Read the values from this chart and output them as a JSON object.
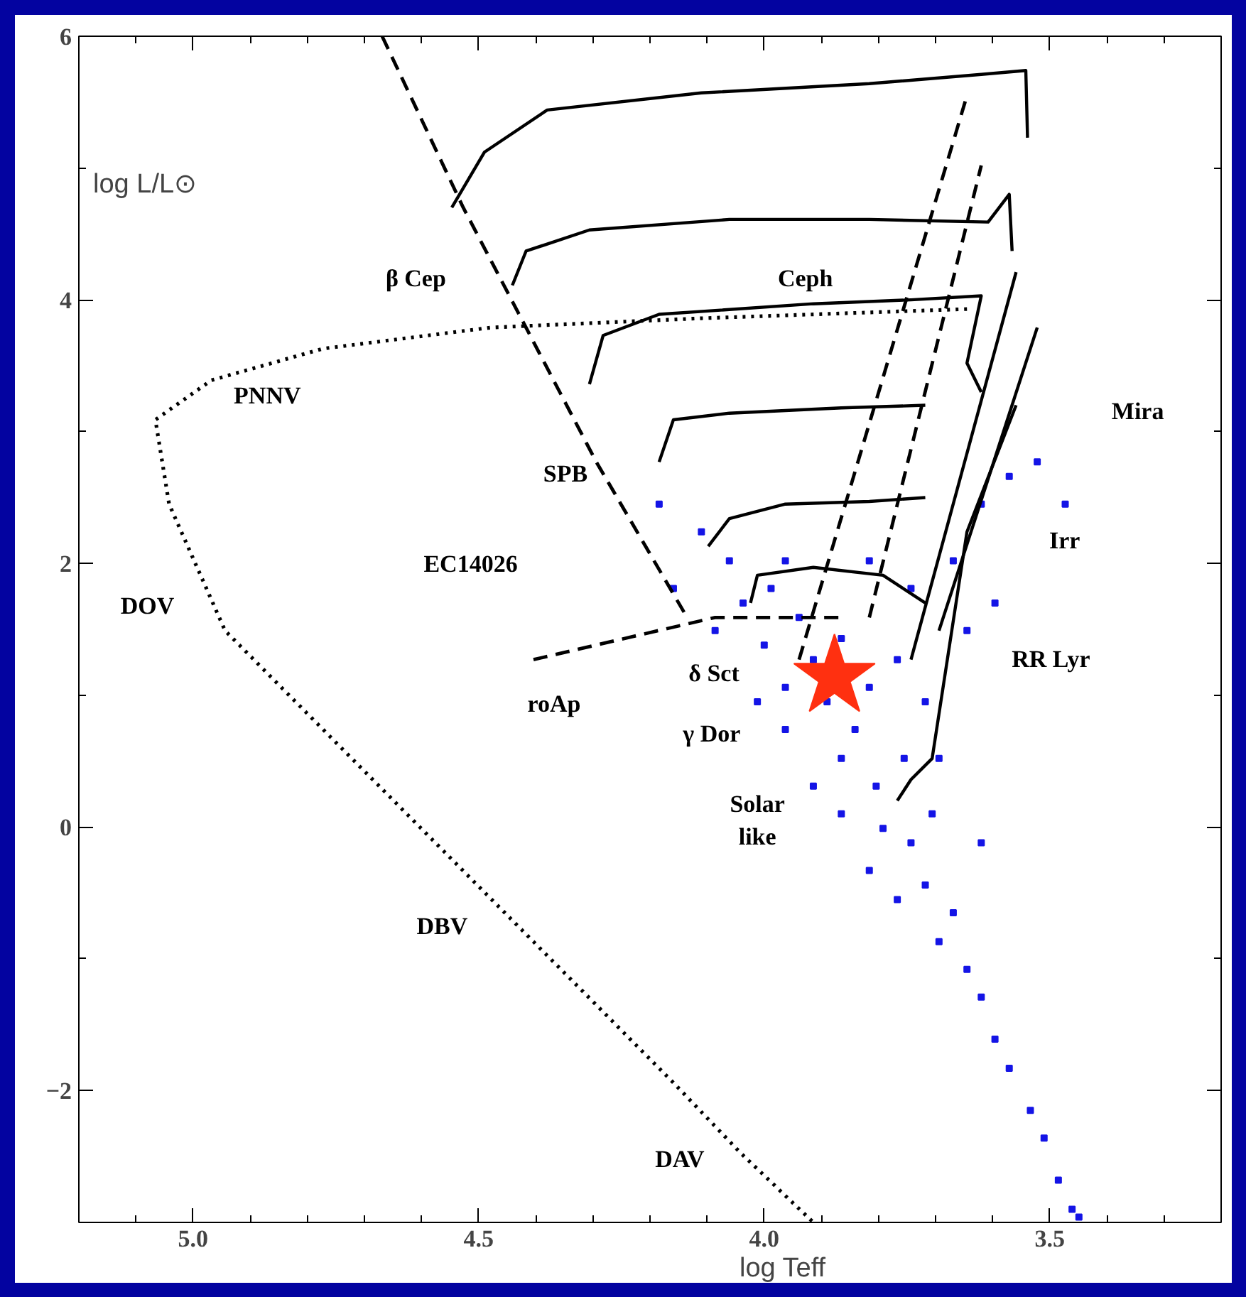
{
  "chart_data": {
    "type": "line",
    "xlabel": "log Teff",
    "ylabel": "log L/L⊙",
    "xlim": [
      5.2,
      3.2
    ],
    "ylim": [
      -3.0,
      6.0
    ],
    "xticks": [
      {
        "value": 5.1,
        "label": null
      },
      {
        "value": 5.0,
        "label": "5.0"
      },
      {
        "value": 4.9,
        "label": null
      },
      {
        "value": 4.8,
        "label": null
      },
      {
        "value": 4.7,
        "label": null
      },
      {
        "value": 4.6,
        "label": null
      },
      {
        "value": 4.5,
        "label": "4.5"
      },
      {
        "value": 4.4,
        "label": null
      },
      {
        "value": 4.3,
        "label": null
      },
      {
        "value": 4.2,
        "label": null
      },
      {
        "value": 4.1,
        "label": null
      },
      {
        "value": 4.0,
        "label": "4.0"
      },
      {
        "value": 3.9,
        "label": null
      },
      {
        "value": 3.8,
        "label": null
      },
      {
        "value": 3.7,
        "label": null
      },
      {
        "value": 3.6,
        "label": null
      },
      {
        "value": 3.5,
        "label": "3.5"
      },
      {
        "value": 3.4,
        "label": null
      },
      {
        "value": 3.3,
        "label": null
      }
    ],
    "yticks": [
      -2,
      {
        "value": -1,
        "label": null
      },
      0,
      {
        "value": 1,
        "label": null
      },
      2,
      {
        "value": 3,
        "label": null
      },
      4,
      {
        "value": 5,
        "label": null
      },
      6
    ],
    "grid": false,
    "series": [
      {
        "type": "scatter",
        "marker": "square",
        "color": "#1414e6",
        "x": [
          4.037,
          3.988,
          3.939,
          4.0,
          3.914,
          3.865,
          3.963,
          3.89,
          3.841,
          3.816,
          3.767,
          3.865,
          3.804,
          3.755,
          3.792,
          3.743,
          3.706,
          3.718,
          3.669,
          3.694,
          3.645,
          3.62,
          3.596,
          3.571,
          3.534,
          3.51,
          3.485,
          3.461,
          3.449,
          4.061,
          4.11,
          4.184,
          3.743,
          3.669,
          3.62,
          3.571,
          3.645,
          3.596,
          3.718,
          3.694,
          3.62,
          3.963,
          3.914,
          3.816,
          3.865,
          3.767,
          3.963,
          3.816,
          3.522,
          3.473,
          4.159,
          4.086,
          4.012
        ],
        "values": [
          1.7,
          1.81,
          1.59,
          1.38,
          1.27,
          1.43,
          1.06,
          0.95,
          0.74,
          1.06,
          1.27,
          0.52,
          0.31,
          0.52,
          -0.01,
          -0.12,
          0.1,
          -0.44,
          -0.65,
          -0.87,
          -1.08,
          -1.29,
          -1.61,
          -1.83,
          -2.15,
          -2.36,
          -2.68,
          -2.9,
          -2.96,
          2.02,
          2.24,
          2.45,
          1.81,
          2.02,
          2.45,
          2.66,
          1.49,
          1.7,
          0.95,
          0.52,
          -0.12,
          0.74,
          0.31,
          -0.33,
          0.1,
          -0.55,
          2.02,
          2.02,
          2.77,
          2.45,
          1.81,
          1.49,
          0.95
        ]
      },
      {
        "line_style": "dashed",
        "color": "#000000",
        "x": [
          4.669,
          4.527,
          4.294,
          4.135
        ],
        "values": [
          6.0,
          4.7,
          2.77,
          1.59
        ]
      },
      {
        "line_style": "dashed",
        "color": "#000000",
        "x": [
          3.939,
          3.645
        ],
        "values": [
          1.27,
          5.55
        ]
      },
      {
        "line_style": "dashed",
        "color": "#000000",
        "x": [
          3.816,
          3.62
        ],
        "values": [
          1.59,
          5.02
        ]
      },
      {
        "line_style": "dashed",
        "color": "#000000",
        "x": [
          4.404,
          4.086,
          3.865
        ],
        "values": [
          1.27,
          1.59,
          1.59
        ]
      },
      {
        "line_style": "dotted",
        "color": "#000000",
        "x": [
          3.645,
          4.11,
          4.478,
          4.772,
          4.968,
          5.066,
          5.042,
          4.944,
          4.674,
          4.404,
          4.159,
          4.042,
          3.914
        ],
        "values": [
          3.93,
          3.86,
          3.79,
          3.63,
          3.39,
          3.09,
          2.45,
          1.49,
          0.31,
          -0.87,
          -1.94,
          -2.47,
          -3.0
        ]
      },
      {
        "line_style": "solid",
        "color": "#000000",
        "x": [
          4.547,
          4.49,
          4.38,
          4.11,
          3.816,
          3.62,
          3.542,
          3.539
        ],
        "values": [
          4.7,
          5.12,
          5.44,
          5.57,
          5.64,
          5.71,
          5.74,
          5.23
        ]
      },
      {
        "line_style": "solid",
        "color": "#000000",
        "x": [
          4.441,
          4.417,
          4.306,
          4.061,
          3.816,
          3.608,
          3.571,
          3.566
        ],
        "values": [
          4.11,
          4.37,
          4.53,
          4.61,
          4.61,
          4.59,
          4.8,
          4.37
        ]
      },
      {
        "line_style": "solid",
        "color": "#000000",
        "x": [
          4.306,
          4.282,
          4.184,
          3.914,
          3.743,
          3.62,
          3.645,
          3.62
        ],
        "values": [
          3.36,
          3.73,
          3.89,
          3.97,
          4.0,
          4.03,
          3.52,
          3.3
        ]
      },
      {
        "line_style": "solid",
        "color": "#000000",
        "x": [
          4.184,
          4.159,
          4.061,
          3.865,
          3.718
        ],
        "values": [
          2.77,
          3.09,
          3.14,
          3.18,
          3.2
        ]
      },
      {
        "line_style": "solid",
        "color": "#000000",
        "x": [
          4.098,
          4.061,
          3.963,
          3.816,
          3.718
        ],
        "values": [
          2.13,
          2.34,
          2.45,
          2.47,
          2.5
        ]
      },
      {
        "line_style": "solid",
        "color": "#000000",
        "x": [
          4.024,
          4.012,
          3.914,
          3.792,
          3.718
        ],
        "values": [
          1.7,
          1.91,
          1.97,
          1.91,
          1.7
        ]
      },
      {
        "line_style": "solid",
        "color": "#000000",
        "x": [
          3.559,
          3.743
        ],
        "values": [
          4.21,
          1.27
        ]
      },
      {
        "line_style": "solid",
        "color": "#000000",
        "x": [
          3.522,
          3.694
        ],
        "values": [
          3.79,
          1.49
        ]
      },
      {
        "line_style": "solid",
        "color": "#000000",
        "x": [
          3.767,
          3.743,
          3.706,
          3.645,
          3.559
        ],
        "values": [
          0.2,
          0.36,
          0.52,
          2.24,
          3.2
        ]
      },
      {
        "type": "scatter",
        "marker": "star",
        "color": "#ff3010",
        "x": [
          3.877
        ],
        "values": [
          1.14
        ]
      }
    ],
    "annotations": [
      "β Cep",
      "Ceph",
      "Mira",
      "PNNV",
      "SPB",
      "Irr",
      "EC14026",
      "DOV",
      "δ Sct",
      "RR Lyr",
      "roAp",
      "γ Dor",
      "Solar\nlike",
      "DBV",
      "DAV"
    ]
  }
}
